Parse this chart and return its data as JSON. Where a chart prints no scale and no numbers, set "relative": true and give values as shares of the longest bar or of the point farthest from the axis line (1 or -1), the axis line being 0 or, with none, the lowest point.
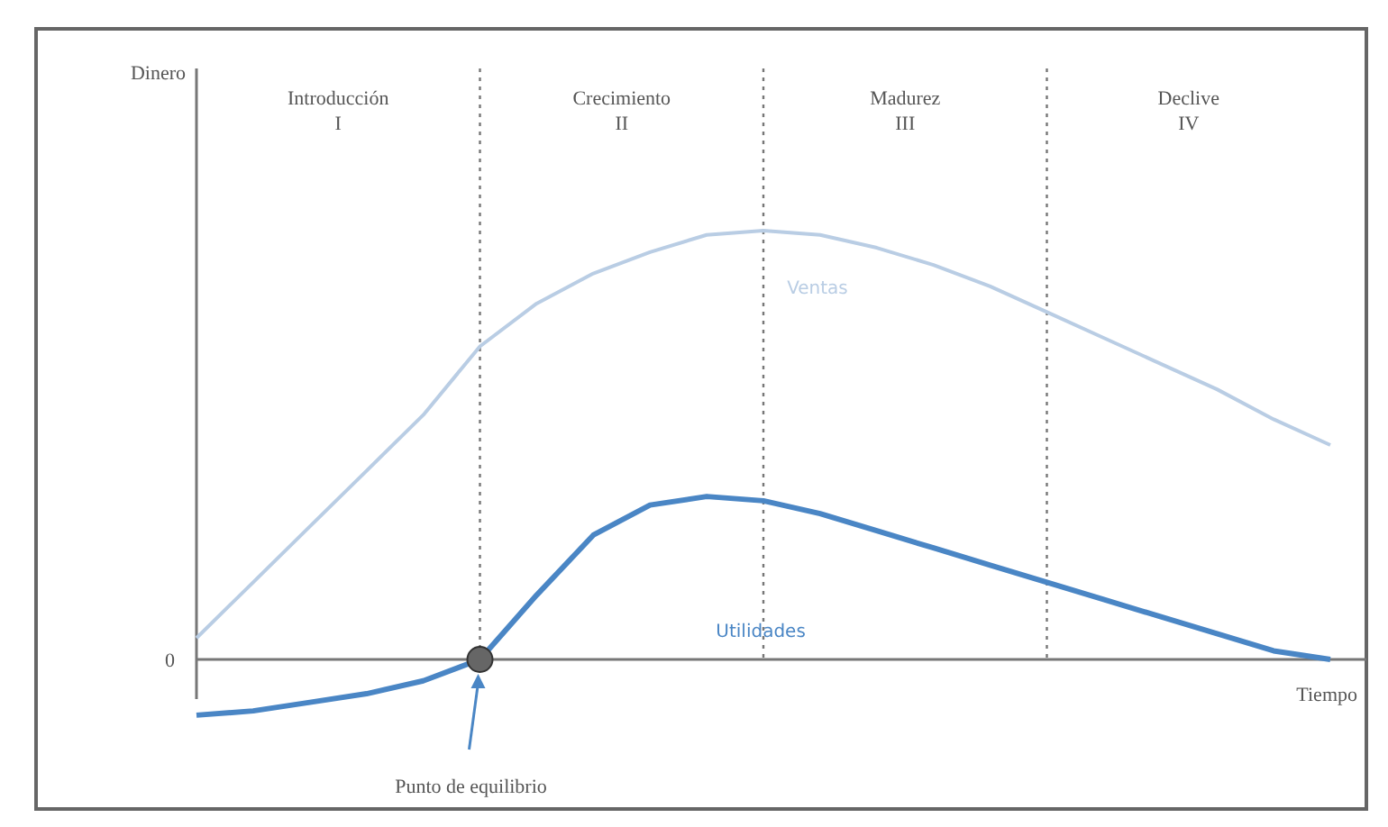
{
  "chart_data": {
    "type": "line",
    "relative": true,
    "xlabel": "Tiempo",
    "marker": "none",
    "line_style": "solid",
    "grid": "x",
    "categories": [
      null,
      null,
      null,
      null,
      null,
      null,
      null,
      null,
      null,
      null,
      null,
      null,
      null,
      null,
      null,
      null,
      null,
      null,
      null,
      null,
      null
    ],
    "series": [
      {
        "name": "Ventas",
        "color": "#b9cde4",
        "values": [
          0.05,
          0.18,
          0.31,
          0.44,
          0.57,
          0.73,
          0.83,
          0.9,
          0.95,
          0.99,
          1.0,
          0.99,
          0.96,
          0.92,
          0.87,
          0.81,
          0.75,
          0.69,
          0.63,
          0.56,
          0.5
        ]
      },
      {
        "name": "Utilidades",
        "color": "#4a86c5",
        "values": [
          -0.13,
          -0.12,
          -0.1,
          -0.08,
          -0.05,
          0,
          0.15,
          0.29,
          0.36,
          0.38,
          0.37,
          0.34,
          0.3,
          0.26,
          0.22,
          0.18,
          0.14,
          0.1,
          0.06,
          0.02,
          0
        ]
      }
    ],
    "annotations": [
      "Introducción\nI",
      "Crecimiento\nII",
      "Madurez\nIII",
      "Declive\nIV",
      "Dinero",
      "0",
      "Punto de equilibrio"
    ]
  }
}
